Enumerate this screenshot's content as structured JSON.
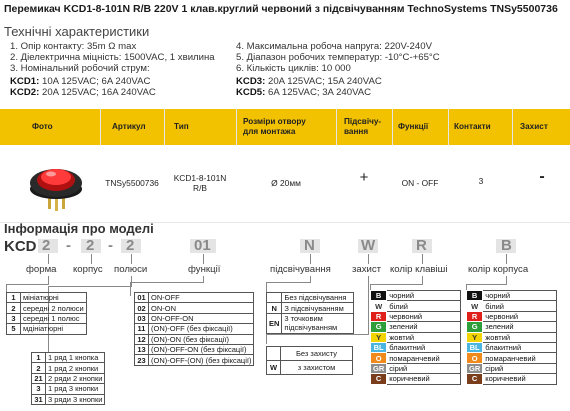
{
  "title": "Перемикач KCD1-8-101N R/B 220V 1 клав.круглий червоний з підсвічуванням TechnoSystems TNSy5500736",
  "specs_heading": "Технічні характеристики",
  "specs_left": [
    "1. Опір контакту: 35m Ω  max",
    "2. Діелектрична міцність:  1500VAC, 1 хвилина",
    "3. Номінальний робочий струм:"
  ],
  "current_left": [
    {
      "key": "KCD1:",
      "value": " 10A 125VAC; 6A 240VAC"
    },
    {
      "key": "KCD2:",
      "value": " 20A 125VAC; 16A 240VAC"
    }
  ],
  "specs_right": [
    "4. Максимальна робоча напруга: 220V-240V",
    "5. Діапазон робочих температур: -10°C-+65°C",
    "6. Кількість циклів: 10 000"
  ],
  "current_right": [
    {
      "key": "KCD3:",
      "value": " 20A 125VAC; 15A 240VAC"
    },
    {
      "key": "KCD5:",
      "value": " 6A 125VAC; 3A 240VAC"
    }
  ],
  "table": {
    "headers": [
      "Фото",
      "Артикул",
      "Тип",
      "Розміри отвору для монтажа",
      "Підсвічу-вання",
      "Функції",
      "Контакти",
      "Захист"
    ],
    "row": {
      "article": "TNSy5500736",
      "type_l1": "KCD1-8-101N",
      "type_l2": "R/B",
      "size": "Ø 20мм",
      "backlight": "+",
      "function": "ON - OFF",
      "contacts": "3",
      "protection": "-"
    }
  },
  "model_heading": "Інформація про моделі",
  "code": {
    "prefix": "KCD",
    "p1": "2",
    "d1": "-",
    "p2": "2",
    "d2": "-",
    "p3": "2",
    "p4": "01",
    "p5": "N",
    "p6": "W",
    "p7": "R",
    "p8": "B"
  },
  "labels": {
    "form": "форма",
    "body": "корпус",
    "poles": "полюси",
    "functions": "функції",
    "backlight": "підсвічування",
    "protection": "захист",
    "key_color": "колір клавіші",
    "body_color": "колір корпуса"
  },
  "form_rows": [
    {
      "k": "1",
      "v": "мініатюрні"
    },
    {
      "k": "2",
      "v": "середні 2 полюси"
    },
    {
      "k": "3",
      "v": "середні 1 полюс"
    },
    {
      "k": "5",
      "v": "мдініатюрні"
    }
  ],
  "pole_rows": [
    {
      "k": "1",
      "v": "1 ряд 1 кнопка"
    },
    {
      "k": "2",
      "v": "1 ряд 2 кнопки"
    },
    {
      "k": "21",
      "v": "2 ряди 2 кнопки"
    },
    {
      "k": "3",
      "v": "1 ряд 3 кнопки"
    },
    {
      "k": "31",
      "v": "3 ряди 3 кнопки"
    }
  ],
  "function_rows": [
    {
      "k": "01",
      "v": "ON-OFF"
    },
    {
      "k": "02",
      "v": "ON-ON"
    },
    {
      "k": "03",
      "v": "ON-OFF-ON"
    },
    {
      "k": "11",
      "v": "(ON)-OFF (без фіксації)"
    },
    {
      "k": "12",
      "v": "(ON)-ON (без фіксації)"
    },
    {
      "k": "13",
      "v": "(ON)-OFF-ON (без фіксації)"
    },
    {
      "k": "23",
      "v": "(ON)-OFF-(ON) (без фіксації)"
    }
  ],
  "backlight_rows": [
    {
      "k": "",
      "v": "Без підсвічування"
    },
    {
      "k": "N",
      "v": "З підсвічуванням"
    },
    {
      "k": "EN",
      "v": "3 точковим підсвічуванням"
    }
  ],
  "protection_rows": [
    {
      "k": "",
      "v": "Без захисту"
    },
    {
      "k": "W",
      "v": "з захистом"
    }
  ],
  "key_colors": [
    {
      "k": "B",
      "v": "чорний",
      "c": "#111111"
    },
    {
      "k": "W",
      "v": "білий",
      "c": "#ffffff"
    },
    {
      "k": "R",
      "v": "червоний",
      "c": "#e0201a"
    },
    {
      "k": "G",
      "v": "зелений",
      "c": "#2e9e3a"
    },
    {
      "k": "Y",
      "v": "жовтий",
      "c": "#f2d400"
    },
    {
      "k": "BL",
      "v": "блакитний",
      "c": "#49b5e0"
    },
    {
      "k": "O",
      "v": "помаранчевий",
      "c": "#f08a1c"
    },
    {
      "k": "GR",
      "v": "сірий",
      "c": "#8d8d8d"
    },
    {
      "k": "C",
      "v": "коричневий",
      "c": "#7a3e1d"
    }
  ],
  "body_colors": [
    {
      "k": "B",
      "v": "чорний",
      "c": "#111111"
    },
    {
      "k": "W",
      "v": "білий",
      "c": "#ffffff"
    },
    {
      "k": "R",
      "v": "червоний",
      "c": "#e0201a"
    },
    {
      "k": "G",
      "v": "зелений",
      "c": "#2e9e3a"
    },
    {
      "k": "Y",
      "v": "жовтий",
      "c": "#f2d400"
    },
    {
      "k": "BL",
      "v": "блакитний",
      "c": "#49b5e0"
    },
    {
      "k": "O",
      "v": "помаранчевий",
      "c": "#f08a1c"
    },
    {
      "k": "GR",
      "v": "сірий",
      "c": "#8d8d8d"
    },
    {
      "k": "C",
      "v": "коричневий",
      "c": "#7a3e1d"
    }
  ],
  "colors": {
    "header_bg": "#f2c200",
    "code_box": "#e4e4e4"
  }
}
